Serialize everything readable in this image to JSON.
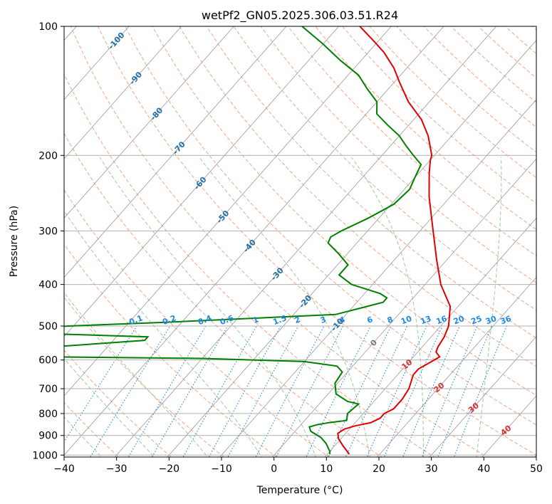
{
  "chart_data": {
    "type": "skew-t",
    "title": "wetPf2_GN05.2025.306.03.51.R24",
    "xlabel": "Temperature (°C)",
    "ylabel": "Pressure (hPa)",
    "xlim": [
      -40,
      50
    ],
    "ylim": [
      1030,
      100
    ],
    "x_ticks": [
      "−40",
      "−30",
      "−20",
      "−10",
      "0",
      "10",
      "20",
      "30",
      "40",
      "50"
    ],
    "x_tick_values": [
      -40,
      -30,
      -20,
      -10,
      0,
      10,
      20,
      30,
      40,
      50
    ],
    "y_ticks": [
      "100",
      "200",
      "300",
      "400",
      "500",
      "600",
      "700",
      "800",
      "900",
      "1000"
    ],
    "y_tick_values": [
      100,
      200,
      300,
      400,
      500,
      600,
      700,
      800,
      900,
      1000
    ],
    "grid": true,
    "colors": {
      "temperature": "#e00000",
      "dewpoint": "#008000",
      "isotherm": "#999999",
      "dry_adiabat": "#f4a582",
      "moist_adiabat": "#9ccc9c",
      "mixing_ratio": "#1e88e5",
      "isotherm_label": "#1f6fa8",
      "adiabat_label": "#d93030"
    },
    "isotherm_labels": [
      {
        "t": -100,
        "p": 108,
        "text": "-100"
      },
      {
        "t": -90,
        "p": 132,
        "text": "-90"
      },
      {
        "t": -80,
        "p": 160,
        "text": "-80"
      },
      {
        "t": -70,
        "p": 192,
        "text": "-70"
      },
      {
        "t": -60,
        "p": 232,
        "text": "-60"
      },
      {
        "t": -50,
        "p": 278,
        "text": "-50"
      },
      {
        "t": -40,
        "p": 325,
        "text": "-40"
      },
      {
        "t": -30,
        "p": 378,
        "text": "-30"
      },
      {
        "t": -20,
        "p": 438,
        "text": "-20"
      },
      {
        "t": -10,
        "p": 496,
        "text": "-10"
      },
      {
        "t": 0,
        "p": 547,
        "text": "0"
      }
    ],
    "mixing_ratio_labels": [
      "0.1",
      "0.2",
      "0.4",
      "0.6",
      "1",
      "1.5",
      "2",
      "3",
      "4",
      "6",
      "8",
      "10",
      "13",
      "16",
      "20",
      "25",
      "30",
      "36"
    ],
    "mixing_ratio_values": [
      0.1,
      0.2,
      0.4,
      0.6,
      1,
      1.5,
      2,
      3,
      4,
      6,
      8,
      10,
      13,
      16,
      20,
      25,
      30,
      36
    ],
    "adiabat_labels": [
      {
        "t": 10,
        "p": 614,
        "text": "10"
      },
      {
        "t": 20,
        "p": 695,
        "text": "20"
      },
      {
        "t": 30,
        "p": 775,
        "text": "30"
      },
      {
        "t": 40,
        "p": 875,
        "text": "40"
      }
    ],
    "series": [
      {
        "key": "temperature",
        "points": [
          [
            14.2,
            995
          ],
          [
            11.5,
            950
          ],
          [
            9.5,
            915
          ],
          [
            8.5,
            890
          ],
          [
            9.0,
            870
          ],
          [
            10.5,
            855
          ],
          [
            13.0,
            840
          ],
          [
            14.0,
            820
          ],
          [
            14.0,
            800
          ],
          [
            15.0,
            780
          ],
          [
            15.0,
            740
          ],
          [
            14.5,
            700
          ],
          [
            13.0,
            650
          ],
          [
            13.0,
            630
          ],
          [
            14.0,
            610
          ],
          [
            15.0,
            590
          ],
          [
            14.0,
            580
          ],
          [
            13.5,
            575
          ],
          [
            13.0,
            560
          ],
          [
            12.5,
            530
          ],
          [
            11.5,
            500
          ],
          [
            8.5,
            450
          ],
          [
            3.0,
            400
          ],
          [
            -2.0,
            350
          ],
          [
            -7.5,
            300
          ],
          [
            -14.0,
            250
          ],
          [
            -18.0,
            220
          ],
          [
            -20.0,
            205
          ],
          [
            -20.5,
            200
          ],
          [
            -24.5,
            180
          ],
          [
            -28.5,
            165
          ],
          [
            -34.0,
            150
          ],
          [
            -39.0,
            135
          ],
          [
            -42.5,
            125
          ],
          [
            -47.0,
            115
          ],
          [
            -51.0,
            108
          ],
          [
            -56.0,
            100
          ]
        ]
      },
      {
        "key": "dewpoint",
        "points": [
          [
            10.5,
            995
          ],
          [
            10.0,
            980
          ],
          [
            8.0,
            940
          ],
          [
            6.0,
            910
          ],
          [
            3.0,
            880
          ],
          [
            2.0,
            860
          ],
          [
            3.0,
            850
          ],
          [
            5.0,
            840
          ],
          [
            8.0,
            830
          ],
          [
            7.0,
            800
          ],
          [
            7.5,
            760
          ],
          [
            5.0,
            750
          ],
          [
            1.5,
            720
          ],
          [
            -0.5,
            680
          ],
          [
            -1.0,
            640
          ],
          [
            -3.0,
            620
          ],
          [
            -10.0,
            605
          ],
          [
            -30.0,
            595
          ],
          [
            -70.0,
            588
          ],
          [
            -75.0,
            580
          ],
          [
            -61.0,
            560
          ],
          [
            -44.0,
            540
          ],
          [
            -44.0,
            530
          ],
          [
            -66.0,
            520
          ],
          [
            -73.0,
            510
          ],
          [
            -61.0,
            500
          ],
          [
            -43.0,
            490
          ],
          [
            -12.0,
            470
          ],
          [
            -5.0,
            440
          ],
          [
            -5.0,
            430
          ],
          [
            -7.0,
            420
          ],
          [
            -14.0,
            400
          ],
          [
            -18.0,
            380
          ],
          [
            -18.0,
            360
          ],
          [
            -21.5,
            340
          ],
          [
            -25.5,
            320
          ],
          [
            -26.0,
            310
          ],
          [
            -25.0,
            300
          ],
          [
            -22.0,
            280
          ],
          [
            -19.5,
            260
          ],
          [
            -19.0,
            240
          ],
          [
            -20.0,
            225
          ],
          [
            -21.0,
            210
          ],
          [
            -24.0,
            200
          ],
          [
            -27.0,
            190
          ],
          [
            -30.0,
            180
          ],
          [
            -34.0,
            170
          ],
          [
            -38.0,
            160
          ],
          [
            -40.0,
            150
          ],
          [
            -44.0,
            140
          ],
          [
            -48.0,
            130
          ],
          [
            -54.0,
            120
          ],
          [
            -60.0,
            110
          ],
          [
            -67.0,
            100
          ]
        ]
      }
    ]
  }
}
